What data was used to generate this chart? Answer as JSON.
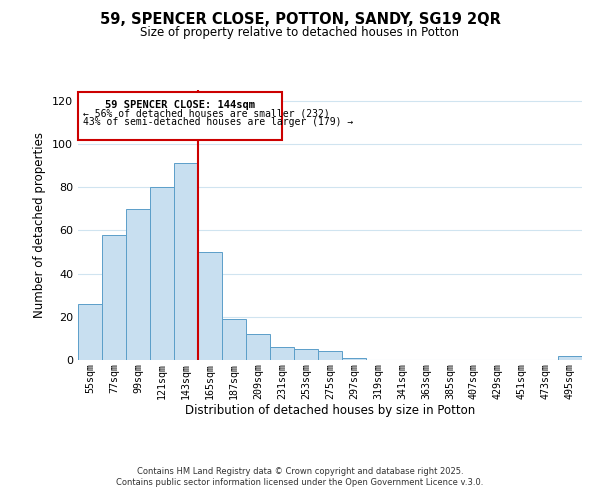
{
  "title": "59, SPENCER CLOSE, POTTON, SANDY, SG19 2QR",
  "subtitle": "Size of property relative to detached houses in Potton",
  "xlabel": "Distribution of detached houses by size in Potton",
  "ylabel": "Number of detached properties",
  "bar_color": "#c8dff0",
  "bar_edge_color": "#5b9ec9",
  "categories": [
    "55sqm",
    "77sqm",
    "99sqm",
    "121sqm",
    "143sqm",
    "165sqm",
    "187sqm",
    "209sqm",
    "231sqm",
    "253sqm",
    "275sqm",
    "297sqm",
    "319sqm",
    "341sqm",
    "363sqm",
    "385sqm",
    "407sqm",
    "429sqm",
    "451sqm",
    "473sqm",
    "495sqm"
  ],
  "values": [
    26,
    58,
    70,
    80,
    91,
    50,
    19,
    12,
    6,
    5,
    4,
    1,
    0,
    0,
    0,
    0,
    0,
    0,
    0,
    0,
    2
  ],
  "ylim": [
    0,
    125
  ],
  "yticks": [
    0,
    20,
    40,
    60,
    80,
    100,
    120
  ],
  "annotation_title": "59 SPENCER CLOSE: 144sqm",
  "annotation_line1": "← 56% of detached houses are smaller (232)",
  "annotation_line2": "43% of semi-detached houses are larger (179) →",
  "vline_x_index": 4,
  "box_facecolor": "#ffffff",
  "box_edgecolor": "#cc0000",
  "vline_color": "#cc0000",
  "footer1": "Contains HM Land Registry data © Crown copyright and database right 2025.",
  "footer2": "Contains public sector information licensed under the Open Government Licence v.3.0.",
  "background_color": "#ffffff",
  "grid_color": "#d0e4f0",
  "title_fontsize": 10.5,
  "subtitle_fontsize": 8.5
}
